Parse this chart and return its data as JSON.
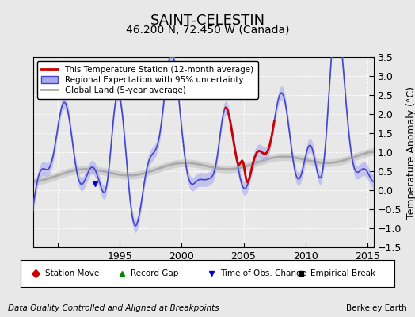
{
  "title": "SAINT-CELESTIN",
  "subtitle": "46.200 N, 72.450 W (Canada)",
  "ylabel": "Temperature Anomaly (°C)",
  "xlabel_left": "Data Quality Controlled and Aligned at Breakpoints",
  "xlabel_right": "Berkeley Earth",
  "ylim": [
    -1.5,
    3.5
  ],
  "yticks": [
    -1.5,
    -1.0,
    -0.5,
    0.0,
    0.5,
    1.0,
    1.5,
    2.0,
    2.5,
    3.0,
    3.5
  ],
  "xlim_start": 1988.0,
  "xlim_end": 2015.5,
  "xticks": [
    1990,
    1995,
    2000,
    2005,
    2010,
    2015
  ],
  "xtick_labels": [
    "",
    "1995",
    "2000",
    "2005",
    "2010",
    "2015"
  ],
  "bg_color": "#e8e8e8",
  "plot_bg_color": "#e8e8e8",
  "regional_color": "#4444cc",
  "regional_shade_color": "#aaaaee",
  "station_color": "#cc0000",
  "global_color": "#aaaaaa",
  "global_shade_color": "#cccccc",
  "legend_items": [
    {
      "label": "This Temperature Station (12-month average)",
      "color": "#cc0000",
      "lw": 2.0
    },
    {
      "label": "Regional Expectation with 95% uncertainty",
      "color": "#4444cc",
      "lw": 1.5
    },
    {
      "label": "Global Land (5-year average)",
      "color": "#aaaaaa",
      "lw": 2.0
    }
  ],
  "marker_items": [
    {
      "label": "Station Move",
      "color": "#cc0000",
      "marker": "D"
    },
    {
      "label": "Record Gap",
      "color": "#008800",
      "marker": "^"
    },
    {
      "label": "Time of Obs. Change",
      "color": "#0000cc",
      "marker": "v"
    },
    {
      "label": "Empirical Break",
      "color": "#000000",
      "marker": "s"
    }
  ],
  "title_fontsize": 13,
  "subtitle_fontsize": 10,
  "tick_fontsize": 9,
  "label_fontsize": 9,
  "seed": 42
}
